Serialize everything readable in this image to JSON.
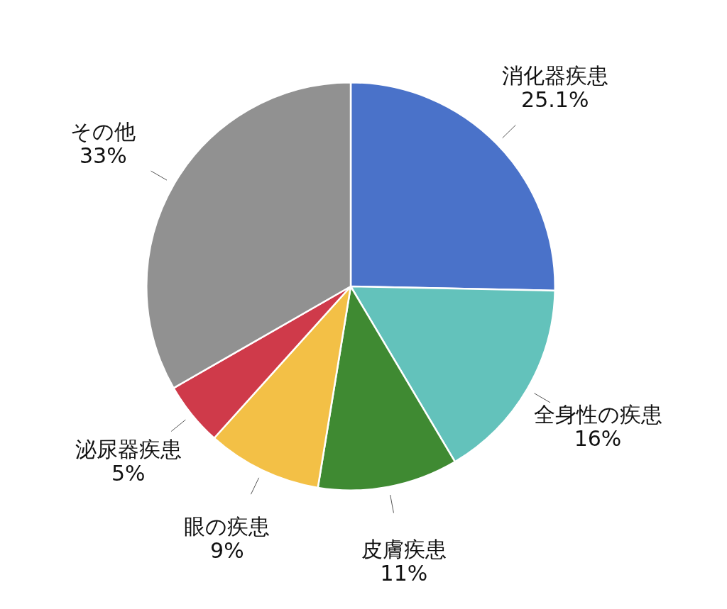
{
  "chart_data": {
    "type": "pie",
    "categories": [
      "消化器疾患",
      "全身性の疾患",
      "皮膚疾患",
      "眼の疾患",
      "泌尿器疾患",
      "その他"
    ],
    "values": [
      25.1,
      16,
      11,
      9,
      5,
      33
    ],
    "value_labels": [
      "25.1%",
      "16%",
      "11%",
      "9%",
      "5%",
      "33%"
    ],
    "colors": [
      "#4a72c9",
      "#63c2bb",
      "#3f8a32",
      "#f3c046",
      "#cf3a4a",
      "#919191"
    ],
    "legend": false
  }
}
